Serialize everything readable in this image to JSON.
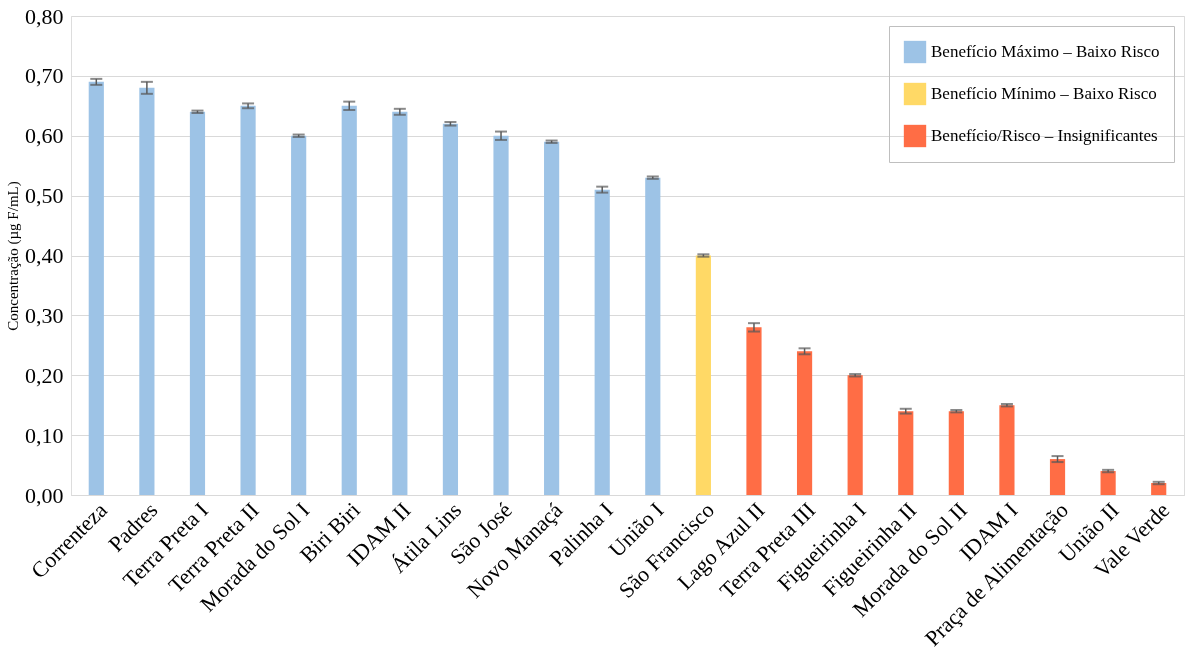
{
  "chart_data": {
    "type": "bar",
    "ylabel": "Concentração (µg F/mL)",
    "categories": [
      "Correnteza",
      "Padres",
      "Terra Preta I",
      "Terra Preta II",
      "Morada do Sol I",
      "Biri Biri",
      "IDAM II",
      "Átila Lins",
      "São José",
      "Novo Manaçá",
      "Palinha I",
      "União I",
      "São Francisco",
      "Lago Azul II",
      "Terra Preta III",
      "Figueirinha I",
      "Figueirinha II",
      "Morada do Sol II",
      "IDAM I",
      "Praça de Alimentação",
      "União II",
      "Vale Verde"
    ],
    "series": [
      {
        "name": "Benefício Máximo – Baixo Risco",
        "color": "#9dc3e6",
        "values": [
          0.69,
          0.68,
          0.64,
          0.65,
          0.6,
          0.65,
          0.64,
          0.62,
          0.6,
          0.59,
          0.51,
          0.53,
          null,
          null,
          null,
          null,
          null,
          null,
          null,
          null,
          null,
          null
        ],
        "errors": [
          0.005,
          0.01,
          0.002,
          0.004,
          0.002,
          0.007,
          0.005,
          0.003,
          0.007,
          0.002,
          0.005,
          0.002,
          null,
          null,
          null,
          null,
          null,
          null,
          null,
          null,
          null,
          null
        ]
      },
      {
        "name": "Benefício Mínimo – Baixo Risco",
        "color": "#ffd966",
        "values": [
          null,
          null,
          null,
          null,
          null,
          null,
          null,
          null,
          null,
          null,
          null,
          null,
          0.4,
          null,
          null,
          null,
          null,
          null,
          null,
          null,
          null,
          null
        ],
        "errors": [
          null,
          null,
          null,
          null,
          null,
          null,
          null,
          null,
          null,
          null,
          null,
          null,
          0.002,
          null,
          null,
          null,
          null,
          null,
          null,
          null,
          null,
          null
        ]
      },
      {
        "name": "Benefício/Risco – Insignificantes",
        "color": "#ff6d45",
        "values": [
          null,
          null,
          null,
          null,
          null,
          null,
          null,
          null,
          null,
          null,
          null,
          null,
          null,
          0.28,
          0.24,
          0.2,
          0.14,
          0.14,
          0.15,
          0.06,
          0.04,
          0.02
        ],
        "errors": [
          null,
          null,
          null,
          null,
          null,
          null,
          null,
          null,
          null,
          null,
          null,
          null,
          null,
          0.007,
          0.005,
          0.002,
          0.004,
          0.002,
          0.002,
          0.005,
          0.002,
          0.002
        ]
      }
    ],
    "ylim": [
      0,
      0.8
    ],
    "yticks": [
      {
        "value": 0,
        "label": "0,00"
      },
      {
        "value": 0.1,
        "label": "0,10"
      },
      {
        "value": 0.2,
        "label": "0,20"
      },
      {
        "value": 0.3,
        "label": "0,30"
      },
      {
        "value": 0.4,
        "label": "0,40"
      },
      {
        "value": 0.5,
        "label": "0,50"
      },
      {
        "value": 0.6,
        "label": "0,60"
      },
      {
        "value": 0.7,
        "label": "0,70"
      },
      {
        "value": 0.8,
        "label": "0,80"
      }
    ],
    "grid": "y",
    "legend": "top right"
  }
}
